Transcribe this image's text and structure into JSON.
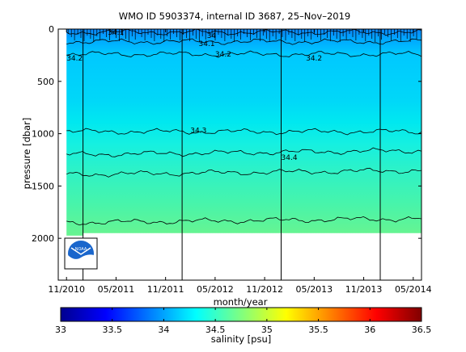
{
  "chart_data": {
    "type": "heatmap",
    "title": "WMO ID 5903374, internal ID 3687, 25–Nov–2019",
    "xlabel": "month/year",
    "ylabel": "pressure [dbar]",
    "x_ticks": [
      "11/2010",
      "05/2011",
      "11/2011",
      "05/2012",
      "11/2012",
      "05/2013",
      "11/2013",
      "05/2014"
    ],
    "x_range": [
      "2010-10",
      "2014-06"
    ],
    "y_ticks": [
      0,
      500,
      1000,
      1500,
      2000
    ],
    "ylim": [
      2400,
      0
    ],
    "y_reversed": true,
    "year_boundaries": [
      "2011-01-01",
      "2012-01-01",
      "2013-01-01",
      "2014-01-01"
    ],
    "data_extent": {
      "x_start": "2010-11",
      "x_end": "2014-06",
      "max_pressure": 1950,
      "early_max_pressure": 1975
    },
    "colorbar": {
      "label": "salinity [psu]",
      "range": [
        33,
        36.5
      ],
      "ticks": [
        "33",
        "33.5",
        "34",
        "34.5",
        "35",
        "35.5",
        "36",
        "36.5"
      ],
      "colormap": "jet"
    },
    "contours": [
      {
        "level": 34.0,
        "label": "34",
        "depth_dbar": 30
      },
      {
        "level": 34.1,
        "label": "34.1",
        "depth_dbar": 120
      },
      {
        "level": 34.2,
        "label": "34.2",
        "depth_dbar": 240
      },
      {
        "level": 34.3,
        "label": "34.3",
        "depth_dbar": 980
      },
      {
        "level": 34.4,
        "label": "34.4",
        "depth_dbar": 1200
      },
      {
        "level": 34.5,
        "label": "",
        "depth_dbar": 1390
      },
      {
        "level": 34.6,
        "label": "",
        "depth_dbar": 1850
      }
    ],
    "contour_label_positions": [
      {
        "label": "34.1",
        "date": "2011-04",
        "p": 25
      },
      {
        "label": "34",
        "date": "2012-04",
        "p": 55
      },
      {
        "label": "34.1",
        "date": "2012-03",
        "p": 130
      },
      {
        "label": "34.2",
        "date": "2012-05",
        "p": 230
      },
      {
        "label": "34.2",
        "date": "2010-11",
        "p": 270
      },
      {
        "label": "34.2",
        "date": "2013-04",
        "p": 270
      },
      {
        "label": "34.3",
        "date": "2012-02",
        "p": 960
      },
      {
        "label": "34.4",
        "date": "2013-01",
        "p": 1220
      }
    ],
    "legend": "none",
    "grid": false
  },
  "logo": {
    "text": "NOAA"
  }
}
